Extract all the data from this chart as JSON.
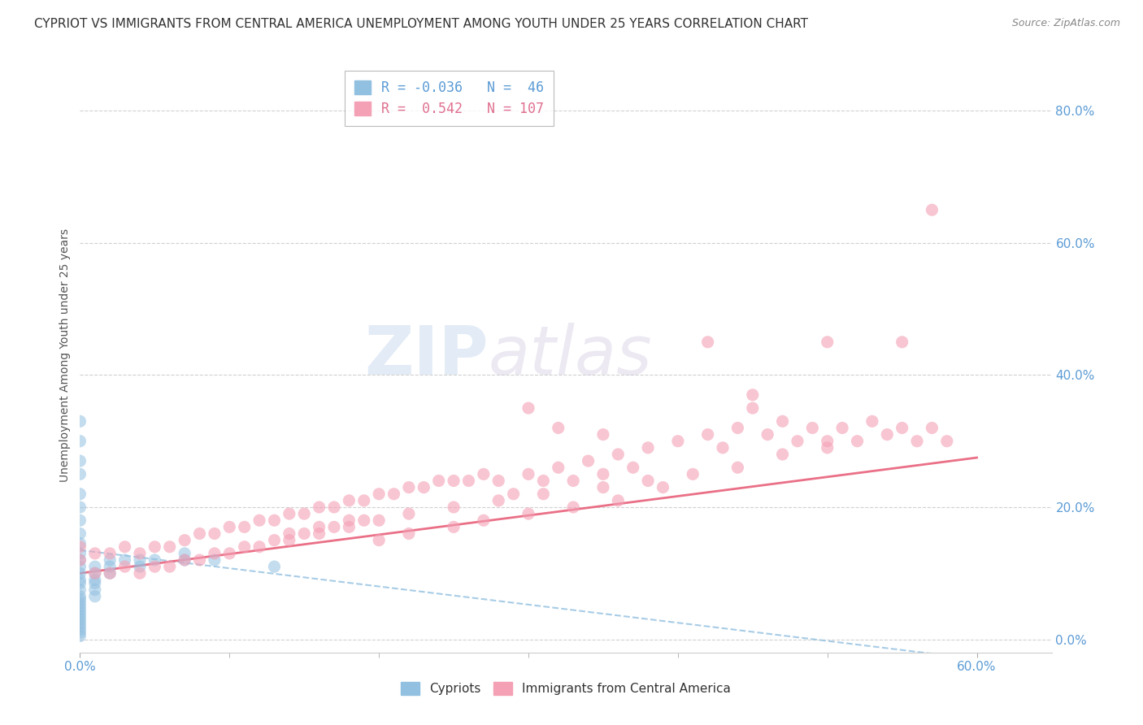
{
  "title": "CYPRIOT VS IMMIGRANTS FROM CENTRAL AMERICA UNEMPLOYMENT AMONG YOUTH UNDER 25 YEARS CORRELATION CHART",
  "source": "Source: ZipAtlas.com",
  "xlim": [
    0.0,
    0.65
  ],
  "ylim": [
    -0.02,
    0.88
  ],
  "watermark_zip": "ZIP",
  "watermark_atlas": "atlas",
  "blue_color": "#92c0e0",
  "pink_color": "#f4a0b5",
  "pink_line_color": "#e8607a",
  "blue_line_color": "#92c0e0",
  "blue_scatter_x": [
    0.0,
    0.0,
    0.0,
    0.0,
    0.0,
    0.0,
    0.0,
    0.0,
    0.0,
    0.0,
    0.0,
    0.0,
    0.0,
    0.0,
    0.0,
    0.0,
    0.0,
    0.0,
    0.0,
    0.0,
    0.0,
    0.0,
    0.0,
    0.0,
    0.0,
    0.0,
    0.0,
    0.0,
    0.0,
    0.01,
    0.01,
    0.01,
    0.01,
    0.01,
    0.01,
    0.02,
    0.02,
    0.02,
    0.03,
    0.04,
    0.04,
    0.05,
    0.07,
    0.07,
    0.09,
    0.13
  ],
  "blue_scatter_y": [
    0.33,
    0.3,
    0.27,
    0.25,
    0.22,
    0.2,
    0.18,
    0.16,
    0.145,
    0.13,
    0.12,
    0.11,
    0.1,
    0.09,
    0.085,
    0.075,
    0.065,
    0.06,
    0.055,
    0.05,
    0.045,
    0.04,
    0.035,
    0.03,
    0.025,
    0.02,
    0.015,
    0.01,
    0.005,
    0.11,
    0.1,
    0.09,
    0.085,
    0.075,
    0.065,
    0.12,
    0.11,
    0.1,
    0.12,
    0.12,
    0.11,
    0.12,
    0.13,
    0.12,
    0.12,
    0.11
  ],
  "pink_scatter_x": [
    0.0,
    0.0,
    0.01,
    0.01,
    0.02,
    0.02,
    0.03,
    0.03,
    0.04,
    0.04,
    0.05,
    0.05,
    0.06,
    0.06,
    0.07,
    0.07,
    0.08,
    0.08,
    0.09,
    0.09,
    0.1,
    0.1,
    0.11,
    0.11,
    0.12,
    0.12,
    0.13,
    0.13,
    0.14,
    0.14,
    0.15,
    0.15,
    0.16,
    0.16,
    0.17,
    0.17,
    0.18,
    0.18,
    0.19,
    0.19,
    0.2,
    0.2,
    0.21,
    0.22,
    0.23,
    0.24,
    0.25,
    0.26,
    0.27,
    0.28,
    0.29,
    0.3,
    0.31,
    0.32,
    0.33,
    0.34,
    0.35,
    0.36,
    0.37,
    0.38,
    0.4,
    0.42,
    0.43,
    0.44,
    0.45,
    0.46,
    0.47,
    0.48,
    0.49,
    0.5,
    0.51,
    0.52,
    0.53,
    0.54,
    0.55,
    0.56,
    0.57,
    0.58,
    0.42,
    0.45,
    0.5,
    0.55,
    0.57,
    0.3,
    0.32,
    0.35,
    0.2,
    0.22,
    0.25,
    0.27,
    0.3,
    0.33,
    0.36,
    0.39,
    0.14,
    0.16,
    0.18,
    0.22,
    0.25,
    0.28,
    0.31,
    0.35,
    0.38,
    0.41,
    0.44,
    0.47,
    0.5
  ],
  "pink_scatter_y": [
    0.14,
    0.12,
    0.13,
    0.1,
    0.13,
    0.1,
    0.14,
    0.11,
    0.13,
    0.1,
    0.14,
    0.11,
    0.14,
    0.11,
    0.15,
    0.12,
    0.16,
    0.12,
    0.16,
    0.13,
    0.17,
    0.13,
    0.17,
    0.14,
    0.18,
    0.14,
    0.18,
    0.15,
    0.19,
    0.15,
    0.19,
    0.16,
    0.2,
    0.16,
    0.2,
    0.17,
    0.21,
    0.17,
    0.21,
    0.18,
    0.22,
    0.18,
    0.22,
    0.23,
    0.23,
    0.24,
    0.24,
    0.24,
    0.25,
    0.24,
    0.22,
    0.25,
    0.24,
    0.26,
    0.24,
    0.27,
    0.25,
    0.28,
    0.26,
    0.29,
    0.3,
    0.31,
    0.29,
    0.32,
    0.35,
    0.31,
    0.33,
    0.3,
    0.32,
    0.3,
    0.32,
    0.3,
    0.33,
    0.31,
    0.32,
    0.3,
    0.32,
    0.3,
    0.45,
    0.37,
    0.45,
    0.45,
    0.65,
    0.35,
    0.32,
    0.31,
    0.15,
    0.16,
    0.17,
    0.18,
    0.19,
    0.2,
    0.21,
    0.23,
    0.16,
    0.17,
    0.18,
    0.19,
    0.2,
    0.21,
    0.22,
    0.23,
    0.24,
    0.25,
    0.26,
    0.28,
    0.29
  ],
  "blue_trend_x0": 0.0,
  "blue_trend_x1": 0.6,
  "blue_trend_y0": 0.135,
  "blue_trend_y1": -0.03,
  "pink_trend_x0": 0.0,
  "pink_trend_x1": 0.6,
  "pink_trend_y0": 0.1,
  "pink_trend_y1": 0.275,
  "grid_color": "#cccccc",
  "background_color": "#ffffff",
  "title_fontsize": 11,
  "tick_label_color": "#5b9bd5",
  "ylabel_text": "Unemployment Among Youth under 25 years"
}
